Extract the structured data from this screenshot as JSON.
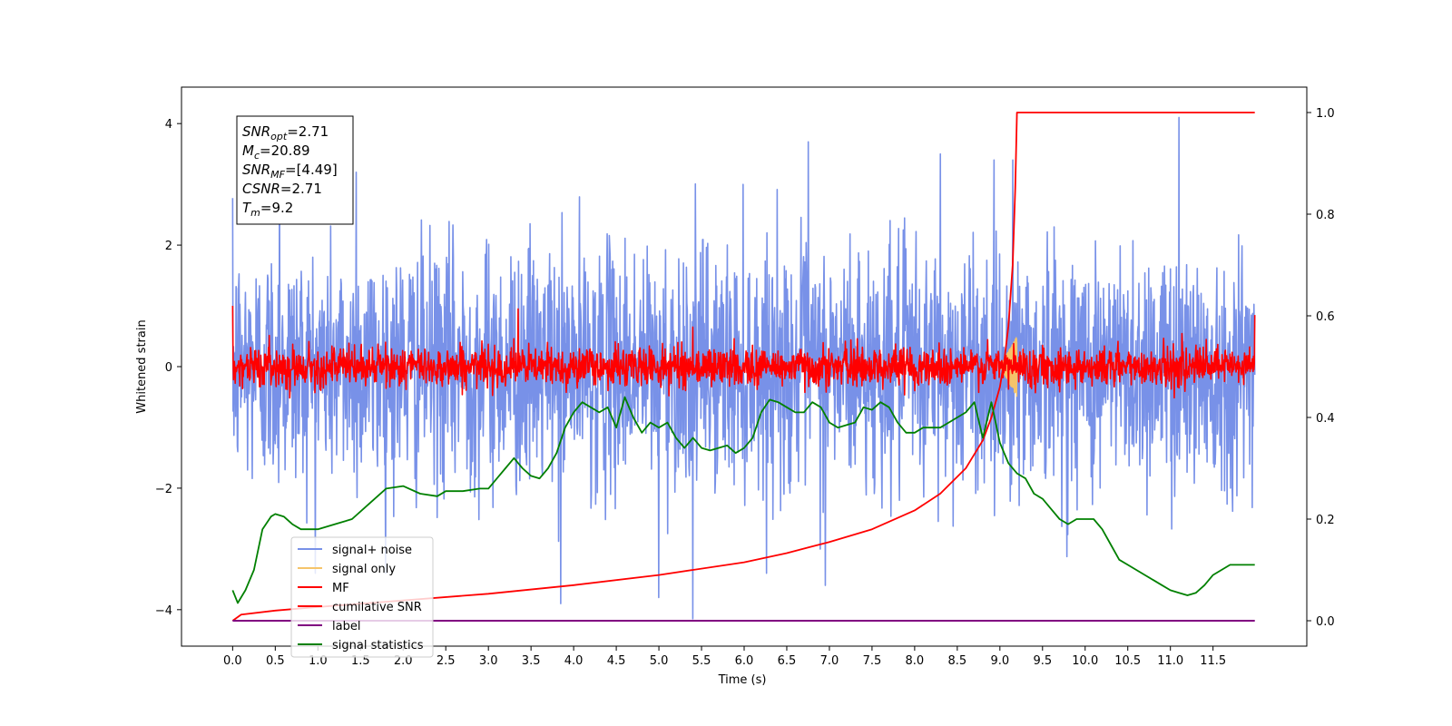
{
  "chart_data": {
    "type": "line",
    "xlabel": "Time (s)",
    "ylabel": "Whitened strain",
    "xlim": [
      -0.6,
      12.6
    ],
    "ylim_left": [
      -4.6,
      4.6
    ],
    "ylim_right": [
      -0.05,
      1.05
    ],
    "x_ticks": [
      0.0,
      0.5,
      1.0,
      1.5,
      2.0,
      2.5,
      3.0,
      3.5,
      4.0,
      4.5,
      5.0,
      5.5,
      6.0,
      6.5,
      7.0,
      7.5,
      8.0,
      8.5,
      9.0,
      9.5,
      10.0,
      10.5,
      11.0,
      11.5
    ],
    "x_tick_labels": [
      "0.0",
      "0.5",
      "1.0",
      "1.5",
      "2.0",
      "2.5",
      "3.0",
      "3.5",
      "4.0",
      "4.5",
      "5.0",
      "5.5",
      "6.0",
      "6.5",
      "7.0",
      "7.5",
      "8.0",
      "8.5",
      "9.0",
      "9.5",
      "10.0",
      "10.5",
      "11.0",
      "11.5"
    ],
    "y_left_ticks": [
      -4,
      -2,
      0,
      2,
      4
    ],
    "y_left_tick_labels": [
      "−4",
      "−2",
      "0",
      "2",
      "4"
    ],
    "y_right_ticks": [
      0.0,
      0.2,
      0.4,
      0.6,
      0.8,
      1.0
    ],
    "y_right_tick_labels": [
      "0.0",
      "0.2",
      "0.4",
      "0.6",
      "0.8",
      "1.0"
    ],
    "annotation": [
      {
        "base": "SNR",
        "sub": "opt",
        "value": "=2.71"
      },
      {
        "base": "M",
        "sub": "c",
        "value": "=20.89"
      },
      {
        "base": "SNR",
        "sub": "MF",
        "value": "=[4.49]"
      },
      {
        "base": "CSNR",
        "sub": "",
        "value": "=2.71"
      },
      {
        "base": "T",
        "sub": "m",
        "value": "=9.2"
      }
    ],
    "series": [
      {
        "name": "signal+ noise",
        "color": "#7891e8",
        "axis": "left",
        "kind": "noise",
        "noise_sd": 1.0,
        "x_range": [
          0.0,
          11.99
        ],
        "spikes": [
          [
            0.55,
            3.3
          ],
          [
            1.45,
            3.2
          ],
          [
            5.4,
            -4.15
          ],
          [
            6.75,
            3.7
          ],
          [
            11.1,
            4.1
          ],
          [
            3.85,
            -3.9
          ],
          [
            5.0,
            -3.8
          ],
          [
            6.95,
            -3.6
          ],
          [
            9.15,
            3.4
          ],
          [
            8.3,
            3.5
          ]
        ]
      },
      {
        "name": "signal only",
        "color": "#f5c46a",
        "axis": "left",
        "kind": "chirp",
        "x_range": [
          9.0,
          9.2
        ],
        "amp": 0.5
      },
      {
        "name": "MF",
        "color": "#ff0000",
        "axis": "left",
        "kind": "noise",
        "noise_sd": 0.16,
        "x_range": [
          0.0,
          11.99
        ],
        "spikes": [
          [
            0.0,
            1.0
          ],
          [
            3.35,
            0.95
          ],
          [
            11.99,
            0.85
          ],
          [
            5.4,
            0.65
          ]
        ]
      },
      {
        "name": "cumilative SNR",
        "color": "#ff0000",
        "axis": "right",
        "x": [
          0.0,
          0.1,
          0.5,
          1.0,
          2.0,
          3.0,
          4.0,
          5.0,
          6.0,
          6.5,
          7.0,
          7.5,
          8.0,
          8.3,
          8.6,
          8.8,
          8.9,
          9.0,
          9.05,
          9.1,
          9.15,
          9.18,
          9.2,
          11.99
        ],
        "y": [
          0.0,
          0.012,
          0.02,
          0.027,
          0.04,
          0.053,
          0.07,
          0.09,
          0.115,
          0.133,
          0.155,
          0.18,
          0.217,
          0.25,
          0.3,
          0.355,
          0.4,
          0.46,
          0.51,
          0.58,
          0.7,
          0.85,
          1.0,
          1.0
        ]
      },
      {
        "name": "label",
        "color": "#800080",
        "axis": "right",
        "x": [
          0.0,
          11.99
        ],
        "y": [
          0.0,
          0.0
        ]
      },
      {
        "name": "signal statistics",
        "color": "#008000",
        "axis": "right",
        "x": [
          0.0,
          0.06,
          0.15,
          0.25,
          0.35,
          0.45,
          0.5,
          0.6,
          0.7,
          0.8,
          0.9,
          1.0,
          1.2,
          1.4,
          1.6,
          1.8,
          2.0,
          2.2,
          2.4,
          2.5,
          2.7,
          2.9,
          3.0,
          3.1,
          3.2,
          3.3,
          3.4,
          3.5,
          3.6,
          3.7,
          3.8,
          3.9,
          4.0,
          4.1,
          4.2,
          4.3,
          4.4,
          4.5,
          4.6,
          4.7,
          4.8,
          4.9,
          5.0,
          5.1,
          5.2,
          5.3,
          5.4,
          5.5,
          5.6,
          5.7,
          5.8,
          5.9,
          6.0,
          6.1,
          6.2,
          6.3,
          6.4,
          6.5,
          6.6,
          6.7,
          6.8,
          6.9,
          7.0,
          7.1,
          7.2,
          7.3,
          7.4,
          7.5,
          7.6,
          7.7,
          7.8,
          7.9,
          8.0,
          8.1,
          8.2,
          8.3,
          8.4,
          8.5,
          8.6,
          8.7,
          8.8,
          8.9,
          9.0,
          9.1,
          9.2,
          9.3,
          9.4,
          9.5,
          9.6,
          9.7,
          9.8,
          9.9,
          10.0,
          10.1,
          10.2,
          10.3,
          10.4,
          10.5,
          10.6,
          10.7,
          10.8,
          10.9,
          11.0,
          11.1,
          11.2,
          11.3,
          11.4,
          11.5,
          11.6,
          11.7,
          11.8,
          11.9,
          11.99
        ],
        "y": [
          0.06,
          0.035,
          0.06,
          0.1,
          0.18,
          0.205,
          0.21,
          0.205,
          0.19,
          0.18,
          0.18,
          0.18,
          0.19,
          0.2,
          0.23,
          0.26,
          0.265,
          0.25,
          0.245,
          0.255,
          0.255,
          0.26,
          0.26,
          0.28,
          0.3,
          0.32,
          0.3,
          0.285,
          0.28,
          0.3,
          0.33,
          0.38,
          0.41,
          0.43,
          0.42,
          0.41,
          0.42,
          0.38,
          0.44,
          0.4,
          0.37,
          0.39,
          0.38,
          0.39,
          0.36,
          0.34,
          0.36,
          0.34,
          0.335,
          0.34,
          0.345,
          0.33,
          0.34,
          0.36,
          0.41,
          0.435,
          0.43,
          0.42,
          0.41,
          0.41,
          0.43,
          0.42,
          0.39,
          0.38,
          0.385,
          0.39,
          0.42,
          0.415,
          0.43,
          0.42,
          0.39,
          0.37,
          0.37,
          0.38,
          0.38,
          0.38,
          0.39,
          0.4,
          0.41,
          0.43,
          0.36,
          0.43,
          0.35,
          0.31,
          0.29,
          0.28,
          0.25,
          0.24,
          0.22,
          0.2,
          0.19,
          0.2,
          0.2,
          0.2,
          0.18,
          0.15,
          0.12,
          0.11,
          0.1,
          0.09,
          0.08,
          0.07,
          0.06,
          0.055,
          0.05,
          0.055,
          0.07,
          0.09,
          0.1,
          0.11,
          0.11,
          0.11,
          0.11
        ]
      }
    ],
    "legend": {
      "placement": "lower-left"
    },
    "grid": false
  }
}
